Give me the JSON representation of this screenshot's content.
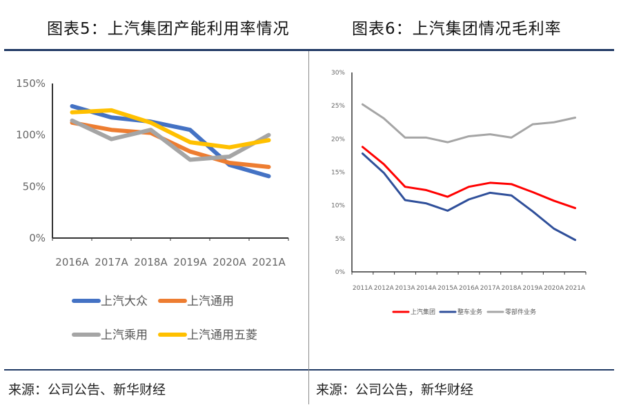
{
  "footer": {
    "left_source": "来源：公司公告、新华财经",
    "right_source": "来源：公司公告，新华财经"
  },
  "chart_data": [
    {
      "type": "line",
      "title": "图表5：上汽集团产能利用率情况",
      "categories": [
        "2016A",
        "2017A",
        "2018A",
        "2019A",
        "2020A",
        "2021A"
      ],
      "yticks": [
        "0%",
        "50%",
        "100%",
        "150%"
      ],
      "ylim": [
        0,
        150
      ],
      "grid": false,
      "legend": "bottom",
      "series": [
        {
          "name": "上汽大众",
          "color": "#4472c4",
          "values": [
            128,
            117,
            113,
            105,
            71,
            60
          ]
        },
        {
          "name": "上汽通用",
          "color": "#ed7d31",
          "values": [
            112,
            105,
            102,
            84,
            73,
            69
          ]
        },
        {
          "name": "上汽乘用",
          "color": "#a5a5a5",
          "values": [
            114,
            96,
            105,
            76,
            79,
            100
          ]
        },
        {
          "name": "上汽通用五菱",
          "color": "#ffc000",
          "values": [
            122,
            124,
            112,
            93,
            88,
            95
          ]
        }
      ]
    },
    {
      "type": "line",
      "title": "图表6：上汽集团情况毛利率",
      "categories": [
        "2011A",
        "2012A",
        "2013A",
        "2014A",
        "2015A",
        "2016A",
        "2017A",
        "2018A",
        "2019A",
        "2020A",
        "2021A"
      ],
      "yticks": [
        "0%",
        "5%",
        "10%",
        "15%",
        "20%",
        "25%",
        "30%"
      ],
      "ylim": [
        0,
        30
      ],
      "grid": false,
      "legend": "bottom",
      "series": [
        {
          "name": "上汽集团",
          "color": "#ff0000",
          "values": [
            18.8,
            16.2,
            12.8,
            12.3,
            11.3,
            12.8,
            13.4,
            13.2,
            12.0,
            10.7,
            9.6
          ]
        },
        {
          "name": "整车业务",
          "color": "#2f4f9a",
          "values": [
            17.8,
            14.9,
            10.8,
            10.3,
            9.2,
            10.9,
            11.9,
            11.5,
            9.1,
            6.5,
            4.8
          ]
        },
        {
          "name": "零部件业务",
          "color": "#a5a5a5",
          "values": [
            25.2,
            23.1,
            20.2,
            20.2,
            19.5,
            20.4,
            20.7,
            20.2,
            22.2,
            22.5,
            23.2
          ]
        }
      ]
    }
  ]
}
